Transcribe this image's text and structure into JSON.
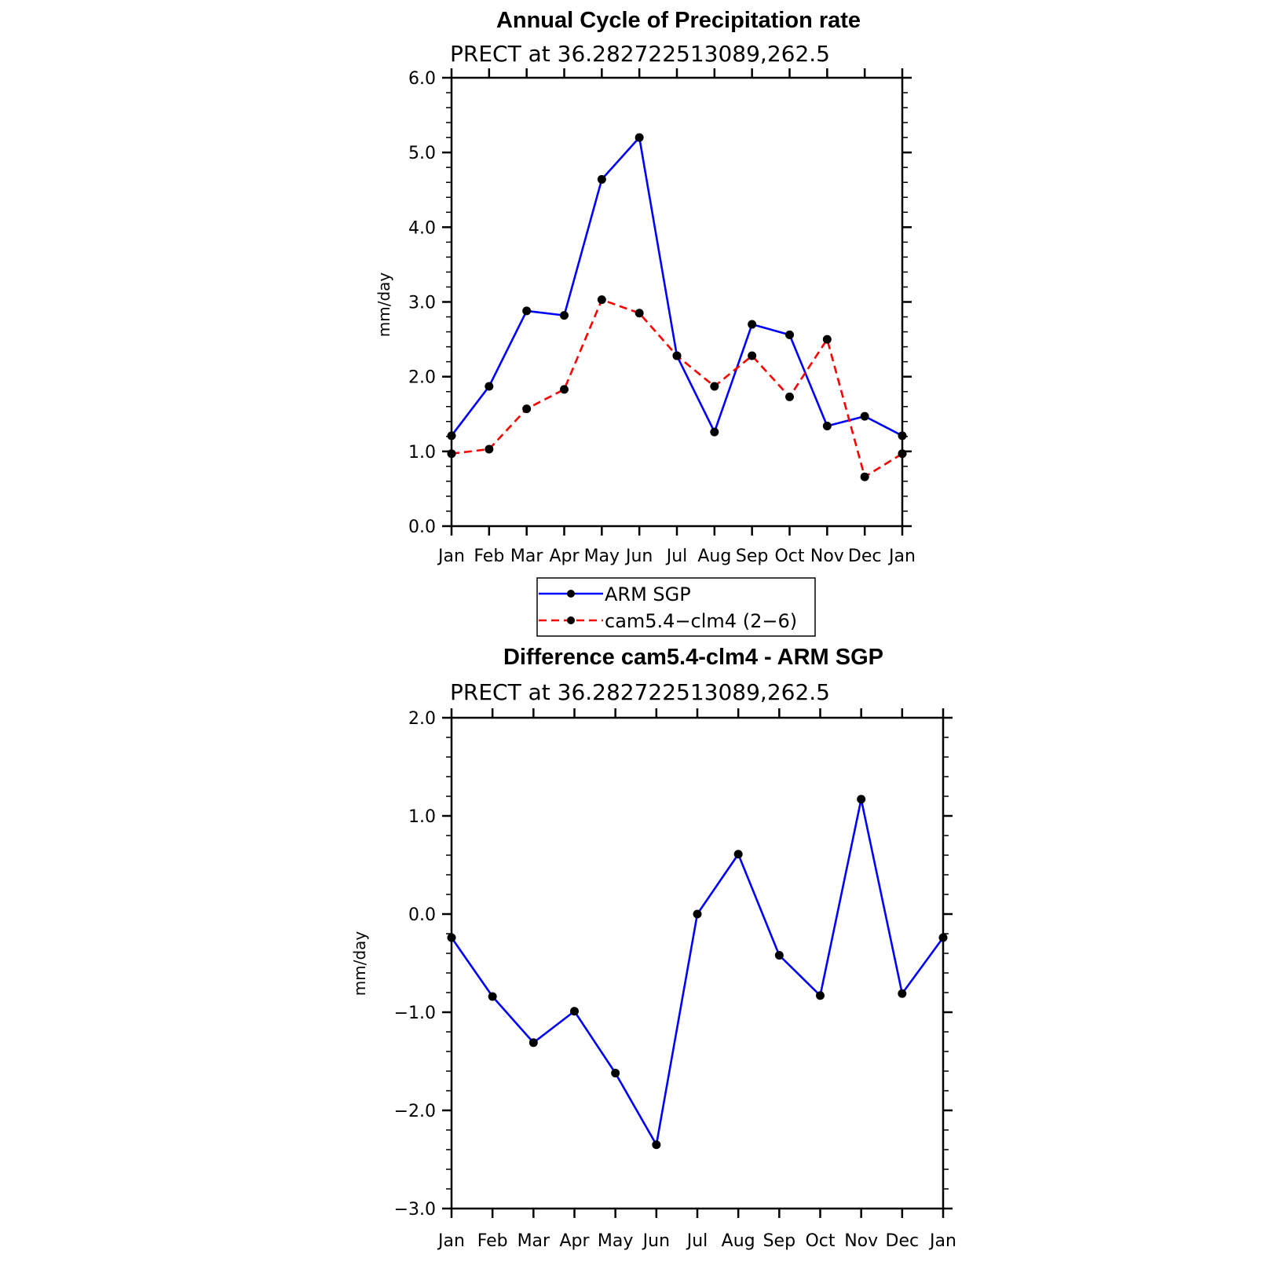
{
  "colors": {
    "series1": "#0000ff",
    "series2": "#ff0000",
    "marker": "#000000",
    "axis": "#000000"
  },
  "chart_data": [
    {
      "type": "line",
      "title": "Annual Cycle of Precipitation rate",
      "subtitle": "PRECT at 36.282722513089,262.5",
      "ylabel": "mm/day",
      "xlabel": "",
      "categories": [
        "Jan",
        "Feb",
        "Mar",
        "Apr",
        "May",
        "Jun",
        "Jul",
        "Aug",
        "Sep",
        "Oct",
        "Nov",
        "Dec",
        "Jan"
      ],
      "ylim": [
        0,
        6
      ],
      "yticks": [
        0,
        1,
        2,
        3,
        4,
        5,
        6
      ],
      "ytick_labels": [
        "0.0",
        "1.0",
        "2.0",
        "3.0",
        "4.0",
        "5.0",
        "6.0"
      ],
      "series": [
        {
          "name": "ARM SGP",
          "style": "solid",
          "color": "#0000ff",
          "values": [
            1.21,
            1.87,
            2.88,
            2.82,
            4.64,
            5.2,
            2.28,
            1.26,
            2.7,
            2.56,
            1.34,
            1.47,
            1.21
          ]
        },
        {
          "name": "cam5.4−clm4 (2−6)",
          "style": "dashed",
          "color": "#ff0000",
          "values": [
            0.97,
            1.03,
            1.57,
            1.83,
            3.03,
            2.85,
            2.28,
            1.87,
            2.28,
            1.73,
            2.5,
            0.66,
            0.97
          ]
        }
      ],
      "legend": {
        "position": "below",
        "entries": [
          "ARM SGP",
          "cam5.4−clm4 (2−6)"
        ]
      }
    },
    {
      "type": "line",
      "title": "Difference cam5.4-clm4 - ARM SGP",
      "subtitle": "PRECT at 36.282722513089,262.5",
      "ylabel": "mm/day",
      "xlabel": "",
      "categories": [
        "Jan",
        "Feb",
        "Mar",
        "Apr",
        "May",
        "Jun",
        "Jul",
        "Aug",
        "Sep",
        "Oct",
        "Nov",
        "Dec",
        "Jan"
      ],
      "ylim": [
        -3,
        2
      ],
      "yticks": [
        -3,
        -2,
        -1,
        0,
        1,
        2
      ],
      "ytick_labels": [
        "−3.0",
        "−2.0",
        "−1.0",
        "0.0",
        "1.0",
        "2.0"
      ],
      "series": [
        {
          "name": "Difference",
          "style": "solid",
          "color": "#0000ff",
          "values": [
            -0.24,
            -0.84,
            -1.31,
            -0.99,
            -1.62,
            -2.35,
            0.0,
            0.61,
            -0.42,
            -0.83,
            1.17,
            -0.81,
            -0.24
          ]
        }
      ]
    }
  ]
}
